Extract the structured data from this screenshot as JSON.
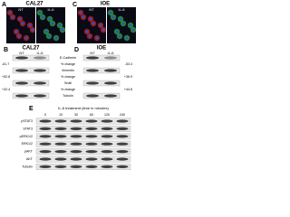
{
  "panels": [
    {
      "letter": "A",
      "title": "CAL27",
      "lanes": [
        "NT",
        "IL-6"
      ]
    },
    {
      "letter": "C",
      "title": "IOE",
      "lanes": [
        "NT",
        "IL-6"
      ]
    }
  ],
  "blots": [
    {
      "letter": "B",
      "title": "CAL27",
      "lanes": [
        "NT",
        "IL-6"
      ],
      "changes": [
        "-61.7",
        "+52.8",
        "+32.4"
      ]
    },
    {
      "letter": "D",
      "title": "IOE",
      "lanes": [
        "NT",
        "IL-6"
      ],
      "changes": [
        "-53.4",
        "+36.9",
        "+44.8"
      ]
    }
  ],
  "proteins": [
    "E-Cadherin",
    "% change",
    "Vimentin",
    "% change",
    "Snail",
    "% change",
    "Tubulin"
  ],
  "time_course": {
    "letter": "E",
    "title": "IL-6 treatment (time in minutes)",
    "times": [
      "0",
      "10",
      "30",
      "60",
      "120",
      "240"
    ],
    "rows": [
      "pSTAT3",
      "STAT3",
      "pERK1/2",
      "ERK1/2",
      "pAKT",
      "AKT",
      "Tubulin"
    ]
  }
}
